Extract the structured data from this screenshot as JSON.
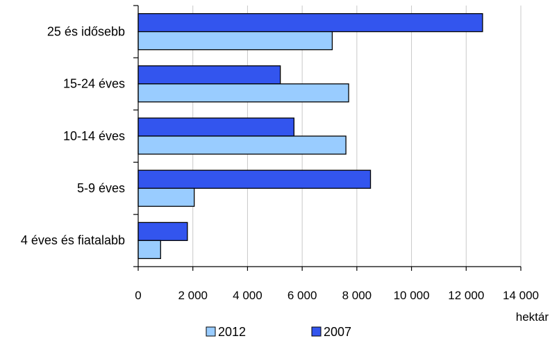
{
  "chart_data": {
    "type": "bar",
    "orientation": "horizontal",
    "categories": [
      "25 és idősebb",
      "15-24 éves",
      "10-14 éves",
      "5-9 éves",
      "4 éves és fiatalabb"
    ],
    "series": [
      {
        "name": "2007",
        "color": "#3355ee",
        "values": [
          12600,
          5200,
          5700,
          8500,
          1800
        ]
      },
      {
        "name": "2012",
        "color": "#99ccff",
        "values": [
          7100,
          7700,
          7600,
          2050,
          820
        ]
      }
    ],
    "legend_order": [
      "2012",
      "2007"
    ],
    "x_ticks": [
      "0",
      "2 000",
      "4 000",
      "6 000",
      "8 000",
      "10 000",
      "12 000",
      "14 000"
    ],
    "xlim": [
      0,
      14000
    ],
    "x_unit": "hektár",
    "grid": "vertical",
    "legend_position": "bottom"
  }
}
